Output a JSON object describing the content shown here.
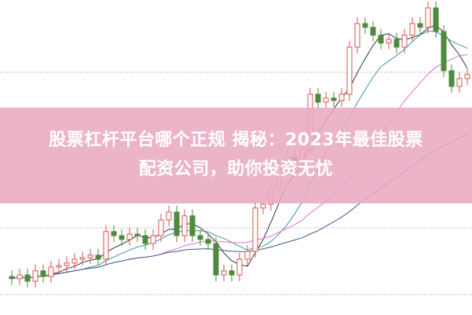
{
  "chart_data": {
    "type": "candlestick",
    "title": "",
    "ylim": [
      0,
      100
    ],
    "grid": "dotted horizontal",
    "colors": {
      "up": "#d9534f",
      "down": "#4e8a3e",
      "ma5": "#333333",
      "ma10": "#3a9a9a",
      "ma20": "#e070d0",
      "ma60": "#3c5a8a",
      "band": "#e9aac0"
    },
    "open": [
      12,
      11.3,
      12.5,
      10.5,
      13.8,
      12,
      15,
      15.5,
      16.3,
      17.5,
      18,
      18.8,
      17.5,
      26.3,
      25,
      23.8,
      25.5,
      25,
      22.5,
      25,
      30,
      32.5,
      25,
      31.3,
      25,
      23.8,
      22.5,
      12.5,
      13.8,
      12.5,
      17.5,
      20,
      33.8,
      35,
      40,
      47.5,
      50,
      48.8,
      52.5,
      70,
      67.5,
      68.8,
      68,
      70,
      85,
      92.5,
      91.3,
      88.8,
      86.3,
      87.5,
      85,
      88.8,
      92.5,
      91.3,
      97.5,
      90,
      77.5,
      72.5,
      75
    ],
    "close": [
      11.3,
      12.5,
      10.5,
      13.8,
      12,
      15,
      15.5,
      16.3,
      17.5,
      18,
      18.8,
      17.5,
      26.3,
      25,
      23.8,
      25.5,
      25,
      22.5,
      25,
      30,
      32.5,
      25,
      31.3,
      25,
      23.8,
      22.5,
      12.5,
      13.8,
      12.5,
      17.5,
      20,
      33.8,
      35,
      40,
      47.5,
      50,
      48.8,
      52.5,
      70,
      67.5,
      68.8,
      68,
      70,
      85,
      92.5,
      91.3,
      88.8,
      86.3,
      87.5,
      85,
      88.8,
      92.5,
      91.3,
      97.5,
      90,
      77.5,
      72.5,
      75,
      76.3
    ]
  },
  "overlay": {
    "title_line1": "股票杠杆平台哪个正规 揭秘：2023年最佳股票",
    "title_line2": "配资公司，助你投资无忧"
  }
}
